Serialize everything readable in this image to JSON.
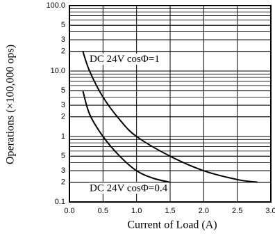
{
  "chart_data": {
    "type": "line",
    "xlabel": "Current of Load (A)",
    "ylabel": "Operations (×100,000 ops)",
    "annotations": [
      "DC 24V cosΦ=1",
      "DC 24V cosΦ=0.4"
    ],
    "series": [
      {
        "name": "DC 24V cosΦ=1",
        "color": "#000000",
        "x": [
          0.2,
          0.3,
          0.5,
          0.75,
          1.0,
          1.5,
          2.0,
          2.5,
          2.8
        ],
        "values": [
          20,
          10,
          4,
          1.8,
          1.0,
          0.5,
          0.3,
          0.22,
          0.2
        ]
      },
      {
        "name": "DC 24V cosΦ=0.4",
        "color": "#000000",
        "x": [
          0.2,
          0.3,
          0.5,
          0.75,
          1.0,
          1.25,
          1.5
        ],
        "values": [
          5,
          2.2,
          1.0,
          0.5,
          0.3,
          0.23,
          0.2
        ]
      }
    ],
    "xlim": [
      0,
      3.0
    ],
    "xticks": [
      {
        "value": 0,
        "label": "0.0"
      },
      0.5,
      {
        "value": 1,
        "label": "1.0"
      },
      1.5,
      {
        "value": 2,
        "label": "2.0"
      },
      2.5,
      {
        "value": 3,
        "label": "3.0"
      }
    ],
    "ylim": [
      0.1,
      100
    ],
    "yticks": [
      0.1,
      {
        "value": 0.2,
        "label": "2"
      },
      {
        "value": 0.3,
        "label": "3"
      },
      {
        "value": 0.5,
        "label": "5"
      },
      1.0,
      {
        "value": 2,
        "label": "2"
      },
      {
        "value": 3,
        "label": "3"
      },
      {
        "value": 5,
        "label": "5"
      },
      {
        "value": 10,
        "label": "10.0"
      },
      {
        "value": 20,
        "label": "2"
      },
      {
        "value": 30,
        "label": "3"
      },
      {
        "value": 50,
        "label": "5"
      },
      {
        "value": 100,
        "label": "100.0"
      }
    ],
    "log_y": true,
    "grid": true,
    "minor_grid": true
  }
}
